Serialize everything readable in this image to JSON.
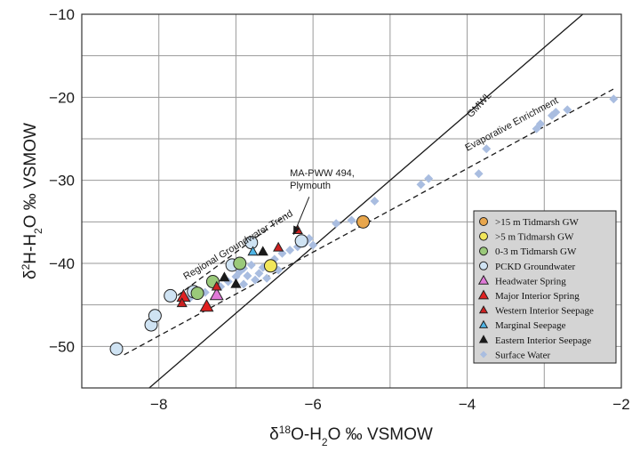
{
  "chart_data": {
    "type": "scatter",
    "xlabel": "δ18O-H2O ‰ VSMOW",
    "ylabel": "δ2H-H2O ‰ VSMOW",
    "xlim": [
      -9,
      -2
    ],
    "ylim": [
      -55,
      -10
    ],
    "xticks": [
      -8,
      -6,
      -4,
      -2
    ],
    "yticks": [
      -10,
      -20,
      -30,
      -40,
      -50
    ],
    "grid": true,
    "legend_position": "bottom-right",
    "lines": [
      {
        "name": "GMWL",
        "style": "solid",
        "color": "#1a1a1a",
        "points": [
          [
            -8.2,
            -55.6
          ],
          [
            -2.4,
            -9.2
          ]
        ]
      },
      {
        "name": "Evaporative Enrichment",
        "style": "dashed",
        "color": "#1a1a1a",
        "points": [
          [
            -8.45,
            -51.0
          ],
          [
            -2.1,
            -19.0
          ]
        ]
      },
      {
        "name": "Regional Groundwater Trend",
        "style": "dashed",
        "color": "#1a1a1a",
        "points": [
          [
            -7.85,
            -44.5
          ],
          [
            -6.35,
            -34.2
          ]
        ]
      }
    ],
    "annotations": [
      {
        "text": "GMWL",
        "x": -3.95,
        "y": -22.5,
        "angle": -47
      },
      {
        "text": "Evaporative Enrichment",
        "x": -4.0,
        "y": -26.5,
        "angle": -28
      },
      {
        "text": "Regional Groundwater Trend",
        "x": -7.65,
        "y": -42.0,
        "angle": -31
      },
      {
        "text": "MA-PWW 494,",
        "x": -6.3,
        "y": -29.5,
        "angle": 0
      },
      {
        "text": "Plymouth",
        "x": -6.3,
        "y": -31.0,
        "angle": 0
      }
    ],
    "arrow": {
      "from": [
        -6.05,
        -32.0
      ],
      "to": [
        -6.25,
        -36.5
      ]
    },
    "series": [
      {
        "name": "Surface Water",
        "marker": "diamond",
        "color": "#a9bde0",
        "stroke": "none",
        "points": [
          [
            -7.6,
            -44.2
          ],
          [
            -7.4,
            -43.5
          ],
          [
            -7.2,
            -42.8
          ],
          [
            -7.1,
            -42.2
          ],
          [
            -7.0,
            -41.6
          ],
          [
            -6.95,
            -41.0
          ],
          [
            -6.9,
            -40.6
          ],
          [
            -6.85,
            -41.5
          ],
          [
            -6.8,
            -40.2
          ],
          [
            -6.75,
            -42.0
          ],
          [
            -6.7,
            -41.2
          ],
          [
            -6.65,
            -40.5
          ],
          [
            -6.6,
            -41.8
          ],
          [
            -6.55,
            -40.0
          ],
          [
            -6.5,
            -39.5
          ],
          [
            -6.45,
            -40.8
          ],
          [
            -6.4,
            -38.8
          ],
          [
            -6.3,
            -38.4
          ],
          [
            -6.2,
            -38.0
          ],
          [
            -6.1,
            -37.5
          ],
          [
            -6.05,
            -37.0
          ],
          [
            -6.0,
            -37.8
          ],
          [
            -5.7,
            -35.2
          ],
          [
            -5.5,
            -34.8
          ],
          [
            -5.2,
            -32.5
          ],
          [
            -4.6,
            -30.5
          ],
          [
            -4.5,
            -29.8
          ],
          [
            -3.85,
            -29.2
          ],
          [
            -3.75,
            -26.2
          ],
          [
            -3.1,
            -23.8
          ],
          [
            -3.05,
            -23.2
          ],
          [
            -2.9,
            -22.2
          ],
          [
            -2.85,
            -21.8
          ],
          [
            -2.7,
            -21.5
          ],
          [
            -2.1,
            -20.2
          ],
          [
            -6.9,
            -42.5
          ],
          [
            -7.05,
            -40.0
          ]
        ]
      },
      {
        "name": "PCKD Groundwater",
        "marker": "circle",
        "color": "#cfe3f3",
        "stroke": "#222222",
        "points": [
          [
            -8.55,
            -50.3
          ],
          [
            -8.1,
            -47.4
          ],
          [
            -8.05,
            -46.3
          ],
          [
            -7.85,
            -43.9
          ],
          [
            -7.55,
            -43.4
          ],
          [
            -6.8,
            -37.5
          ],
          [
            -6.15,
            -37.3
          ],
          [
            -7.05,
            -40.2
          ]
        ]
      },
      {
        "name": "0-3 m Tidmarsh GW",
        "marker": "circle",
        "color": "#9ac97a",
        "stroke": "#222222",
        "points": [
          [
            -7.5,
            -43.6
          ],
          [
            -7.3,
            -42.2
          ],
          [
            -6.95,
            -40.0
          ]
        ]
      },
      {
        "name": ">5 m Tidmarsh GW",
        "marker": "circle",
        "color": "#f1e65a",
        "stroke": "#222222",
        "points": [
          [
            -6.55,
            -40.3
          ]
        ]
      },
      {
        "name": ">15 m Tidmarsh GW",
        "marker": "circle",
        "color": "#e8a64c",
        "stroke": "#222222",
        "points": [
          [
            -5.35,
            -35.0
          ]
        ]
      },
      {
        "name": "Headwater Spring",
        "marker": "triangle-large",
        "color": "#e07ad8",
        "stroke": "#222222",
        "points": [
          [
            -7.25,
            -43.8
          ]
        ]
      },
      {
        "name": "Major Interior Spring",
        "marker": "triangle-large",
        "color": "#e02020",
        "stroke": "#222222",
        "points": [
          [
            -7.38,
            -45.2
          ],
          [
            -7.68,
            -44.0
          ]
        ]
      },
      {
        "name": "Western Interior Seepage",
        "marker": "triangle",
        "color": "#cc2020",
        "stroke": "#222222",
        "points": [
          [
            -7.7,
            -44.8
          ],
          [
            -7.25,
            -42.8
          ],
          [
            -6.45,
            -38.1
          ],
          [
            -6.2,
            -36.0
          ]
        ]
      },
      {
        "name": "Marginal Seepage",
        "marker": "triangle",
        "color": "#4fb5e6",
        "stroke": "#222222",
        "points": [
          [
            -6.78,
            -38.6
          ]
        ]
      },
      {
        "name": "Eastern Interior Seepage",
        "marker": "triangle",
        "color": "#1a1a1a",
        "stroke": "#1a1a1a",
        "points": [
          [
            -7.15,
            -41.7
          ],
          [
            -7.0,
            -42.5
          ],
          [
            -6.65,
            -38.6
          ]
        ]
      }
    ],
    "legend_order": [
      ">15 m Tidmarsh GW",
      ">5 m Tidmarsh GW",
      "0-3 m Tidmarsh GW",
      "PCKD Groundwater",
      "Headwater Spring",
      "Major Interior Spring",
      "Western Interior Seepage",
      "Marginal Seepage",
      "Eastern Interior Seepage",
      "Surface Water"
    ]
  }
}
